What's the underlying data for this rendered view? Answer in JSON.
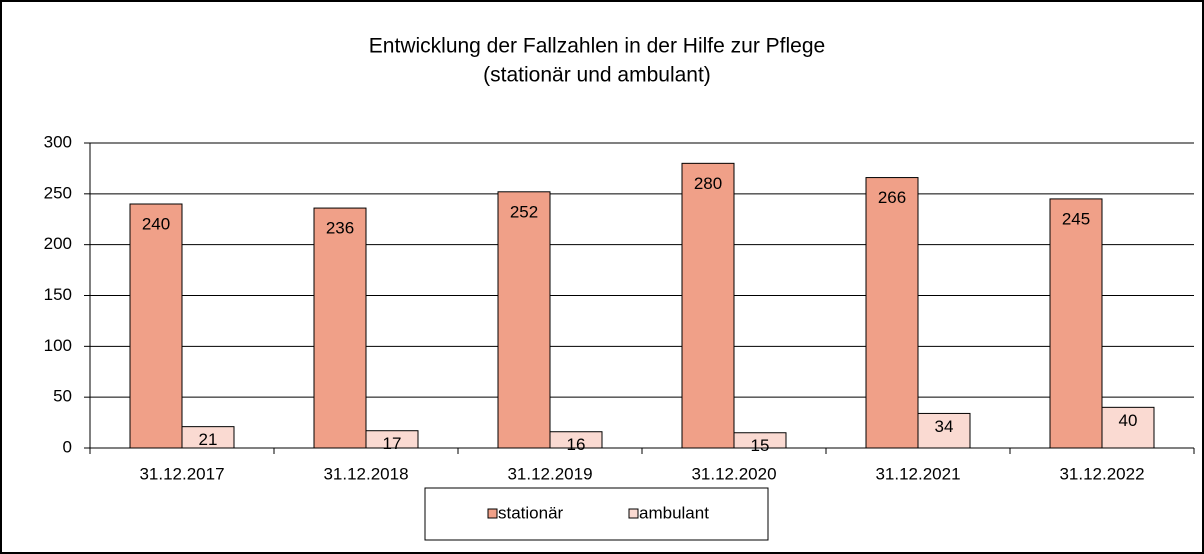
{
  "chart_data": {
    "type": "bar",
    "title": "Entwicklung der Fallzahlen in der Hilfe zur Pflege",
    "subtitle": "(stationär und ambulant)",
    "categories": [
      "31.12.2017",
      "31.12.2018",
      "31.12.2019",
      "31.12.2020",
      "31.12.2021",
      "31.12.2022"
    ],
    "series": [
      {
        "name": "stationär",
        "color": "#f0a088",
        "values": [
          240,
          236,
          252,
          280,
          266,
          245
        ]
      },
      {
        "name": "ambulant",
        "color": "#fadad2",
        "values": [
          21,
          17,
          16,
          15,
          34,
          40
        ]
      }
    ],
    "ylim": [
      0,
      300
    ],
    "yticks": [
      0,
      50,
      100,
      150,
      200,
      250,
      300
    ],
    "grid": true,
    "legend": "bottom"
  }
}
